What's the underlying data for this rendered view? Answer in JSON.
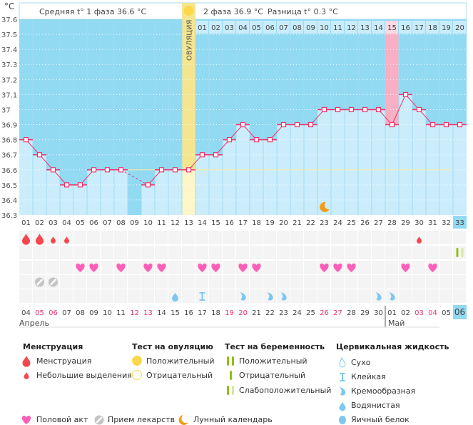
{
  "unit_label": "°C",
  "header": {
    "phase1": "Средняя t° 1 фаза 36.6 °C",
    "phase2": "2 фаза 36.9 °C",
    "difference": "Разница t° 0.3 °C",
    "ovulation_label": "ОВУЛЯЦИЯ"
  },
  "chart_data": {
    "type": "line",
    "y_ticks": [
      "37.6",
      "37.5",
      "37.4",
      "37.3",
      "37.2",
      "37.1",
      "37",
      "36.9",
      "36.8",
      "36.7",
      "36.6",
      "36.5",
      "36.4",
      "36.3"
    ],
    "ylim": [
      36.3,
      37.6
    ],
    "cycle_days": [
      "01",
      "02",
      "03",
      "04",
      "05",
      "06",
      "07",
      "08",
      "09",
      "10",
      "11",
      "12",
      "13",
      "14",
      "15",
      "16",
      "17",
      "18",
      "19",
      "20",
      "21",
      "22",
      "23",
      "24",
      "25",
      "26",
      "27",
      "28",
      "29",
      "30",
      "31",
      "32",
      "33"
    ],
    "temperatures": [
      36.8,
      36.7,
      36.6,
      36.5,
      36.5,
      36.6,
      36.6,
      36.6,
      null,
      36.5,
      36.6,
      36.6,
      36.6,
      36.7,
      36.7,
      36.8,
      36.9,
      36.8,
      36.8,
      36.9,
      36.9,
      36.9,
      37.0,
      37.0,
      37.0,
      37.0,
      37.0,
      36.9,
      37.1,
      37.0,
      36.9,
      36.9,
      36.9
    ],
    "phase2_days": [
      "01",
      "02",
      "03",
      "04",
      "05",
      "06",
      "07",
      "08",
      "09",
      "10",
      "11",
      "12",
      "13",
      "14",
      "15",
      "16",
      "17",
      "18",
      "19",
      "20"
    ],
    "phase2_start_day": 14,
    "ovulation_day": 13,
    "highlighted_phase2_day": "15",
    "cover_line": 36.6,
    "current_day": "33",
    "moon_day": 23
  },
  "symbols": {
    "menstruation_heavy": [
      1,
      2
    ],
    "menstruation_light": [
      3,
      4,
      30
    ],
    "pregnancy_weak_positive": [
      33
    ],
    "intercourse": [
      5,
      6,
      8,
      10,
      11,
      14,
      15,
      17,
      18,
      23,
      24,
      25,
      29,
      31
    ],
    "medication": [
      2,
      3
    ],
    "fluid_watery": [
      12
    ],
    "fluid_sticky": [
      14
    ],
    "fluid_creamy": [
      17,
      19,
      20,
      27,
      28
    ]
  },
  "dates": [
    "04",
    "05",
    "06",
    "07",
    "08",
    "09",
    "10",
    "11",
    "12",
    "13",
    "14",
    "15",
    "16",
    "17",
    "18",
    "19",
    "20",
    "21",
    "22",
    "23",
    "24",
    "25",
    "26",
    "27",
    "28",
    "29",
    "30",
    "01",
    "02",
    "03",
    "04",
    "05",
    "06"
  ],
  "weekend_dates": [
    1,
    2,
    8,
    9,
    15,
    16,
    22,
    23,
    29,
    30
  ],
  "months": {
    "april": "Апрель",
    "may": "Май"
  },
  "legend": {
    "menstruation": {
      "title": "Менструация",
      "items": [
        "Менструация",
        "Небольшие выделения"
      ]
    },
    "ovulation_test": {
      "title": "Тест на овуляцию",
      "items": [
        "Положительный",
        "Отрицательный"
      ]
    },
    "pregnancy_test": {
      "title": "Тест на беременность",
      "items": [
        "Положительный",
        "Отрицательный",
        "Слабоположительный"
      ]
    },
    "cervical_fluid": {
      "title": "Цервикальная жидкость",
      "items": [
        "Сухо",
        "Клейкая",
        "Кремообразная",
        "Водянистая",
        "Яичный белок"
      ]
    },
    "other": [
      "Половой акт",
      "Прием лекарств",
      "Лунный календарь"
    ]
  },
  "colors": {
    "sky": "#92d9f2",
    "bar": "#cbedfb",
    "ovulation": "#f5e58f",
    "ovulation_light": "#fdf6c8",
    "highlight": "#f9afc4",
    "line": "#f0336b",
    "drop": "#f5474d",
    "heart": "#fb5fb8",
    "fluid": "#7cc8f2",
    "green": "#8fbf16",
    "green_light": "#d4e6a8",
    "sun": "#fbd84a",
    "moon": "#f59b16"
  }
}
